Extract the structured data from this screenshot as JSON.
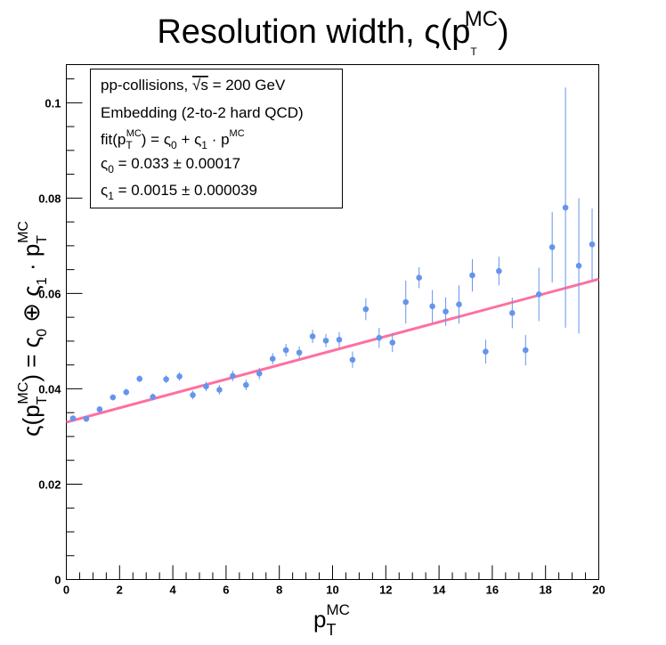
{
  "chart_data": {
    "type": "scatter",
    "title": {
      "main": "Resolution width, ς(p",
      "sub": "T",
      "sup": "MC",
      "close": ")"
    },
    "xlabel": {
      "main": "p",
      "sub": "T",
      "sup": "MC"
    },
    "ylabel": {
      "lhs": "ς(p",
      "lhs_sub": "T",
      "lhs_sup": "MC",
      "mid": ") = ς",
      "sub0": "0",
      "op": " ⊕ ς",
      "sub1": "1",
      "dot": " · p",
      "end_sub": "T",
      "end_sup": "MC"
    },
    "xlim": [
      0,
      20
    ],
    "ylim": [
      0,
      0.108
    ],
    "x_ticks": [
      "0",
      "2",
      "4",
      "6",
      "8",
      "10",
      "12",
      "14",
      "16",
      "18",
      "20"
    ],
    "y_ticks": [
      "0",
      "0.02",
      "0.04",
      "0.06",
      "0.08",
      "0.1"
    ],
    "legend": {
      "placement": "top-left",
      "line1": {
        "pre": "pp-collisions, ",
        "sqrt": "√s",
        "post": " = 200 GeV"
      },
      "line2": "Embedding (2-to-2 hard QCD)",
      "line3": {
        "a": "fit(p",
        "a_sub": "T",
        "a_sup": "MC",
        "b": ") = ς",
        "b_sub": "0",
        "c": " + ς",
        "c_sub": "1",
        "d": " · p",
        "d_sup": "MC"
      },
      "line4": {
        "a": "ς",
        "a_sub": "0",
        "b": " = 0.033 ± 0.00017"
      },
      "line5": {
        "a": "ς",
        "a_sub": "1",
        "b": " = 0.0015 ± 0.000039"
      }
    },
    "fit": {
      "intercept": 0.033,
      "slope": 0.0015,
      "x_range": [
        0,
        20
      ],
      "color": "#ff6f9f"
    },
    "marker_color": "#6495ed",
    "points": [
      {
        "x": 0.25,
        "y": 0.0338,
        "err": 0.0005
      },
      {
        "x": 0.75,
        "y": 0.0337,
        "err": 0.0005
      },
      {
        "x": 1.25,
        "y": 0.0357,
        "err": 0.0006
      },
      {
        "x": 1.75,
        "y": 0.0382,
        "err": 0.0006
      },
      {
        "x": 2.25,
        "y": 0.0393,
        "err": 0.0007
      },
      {
        "x": 2.75,
        "y": 0.0421,
        "err": 0.0007
      },
      {
        "x": 3.25,
        "y": 0.0383,
        "err": 0.0007
      },
      {
        "x": 3.75,
        "y": 0.042,
        "err": 0.0008
      },
      {
        "x": 4.25,
        "y": 0.0426,
        "err": 0.0009
      },
      {
        "x": 4.75,
        "y": 0.0387,
        "err": 0.0009
      },
      {
        "x": 5.25,
        "y": 0.0405,
        "err": 0.001
      },
      {
        "x": 5.75,
        "y": 0.0398,
        "err": 0.001
      },
      {
        "x": 6.25,
        "y": 0.0427,
        "err": 0.0011
      },
      {
        "x": 6.75,
        "y": 0.0408,
        "err": 0.0011
      },
      {
        "x": 7.25,
        "y": 0.0432,
        "err": 0.0012
      },
      {
        "x": 7.75,
        "y": 0.0463,
        "err": 0.0012
      },
      {
        "x": 8.25,
        "y": 0.0481,
        "err": 0.0013
      },
      {
        "x": 8.75,
        "y": 0.0476,
        "err": 0.0013
      },
      {
        "x": 9.25,
        "y": 0.051,
        "err": 0.0014
      },
      {
        "x": 9.75,
        "y": 0.0501,
        "err": 0.0014
      },
      {
        "x": 10.25,
        "y": 0.0503,
        "err": 0.0016
      },
      {
        "x": 10.75,
        "y": 0.0461,
        "err": 0.0017
      },
      {
        "x": 11.25,
        "y": 0.0567,
        "err": 0.0023
      },
      {
        "x": 11.75,
        "y": 0.0507,
        "err": 0.0021
      },
      {
        "x": 12.25,
        "y": 0.0497,
        "err": 0.002
      },
      {
        "x": 12.75,
        "y": 0.0582,
        "err": 0.0045
      },
      {
        "x": 13.25,
        "y": 0.0633,
        "err": 0.0022
      },
      {
        "x": 13.75,
        "y": 0.0573,
        "err": 0.0034
      },
      {
        "x": 14.25,
        "y": 0.0562,
        "err": 0.003
      },
      {
        "x": 14.75,
        "y": 0.0577,
        "err": 0.004
      },
      {
        "x": 15.25,
        "y": 0.0638,
        "err": 0.0034
      },
      {
        "x": 15.75,
        "y": 0.0478,
        "err": 0.0025
      },
      {
        "x": 16.25,
        "y": 0.0647,
        "err": 0.003
      },
      {
        "x": 16.75,
        "y": 0.0559,
        "err": 0.0032
      },
      {
        "x": 17.25,
        "y": 0.0481,
        "err": 0.0032
      },
      {
        "x": 17.75,
        "y": 0.0598,
        "err": 0.0056
      },
      {
        "x": 18.25,
        "y": 0.0697,
        "err": 0.0074
      },
      {
        "x": 18.75,
        "y": 0.078,
        "err": 0.0252
      },
      {
        "x": 19.25,
        "y": 0.0658,
        "err": 0.0142
      },
      {
        "x": 19.75,
        "y": 0.0703,
        "err": 0.0075
      }
    ]
  }
}
